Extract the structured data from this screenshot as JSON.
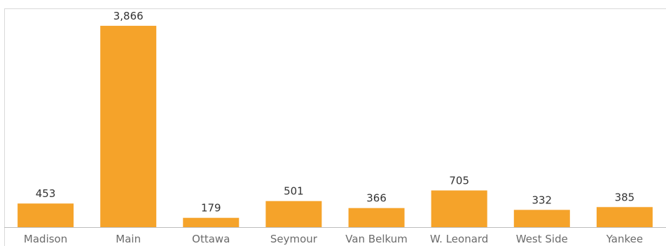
{
  "chart_data": {
    "type": "bar",
    "categories": [
      "Madison",
      "Main",
      "Ottawa",
      "Seymour",
      "Van Belkum",
      "W. Leonard",
      "West Side",
      "Yankee"
    ],
    "values": [
      453,
      3866,
      179,
      501,
      366,
      705,
      332,
      385
    ],
    "value_labels": [
      "453",
      "3,866",
      "179",
      "501",
      "366",
      "705",
      "332",
      "385"
    ],
    "title": "",
    "xlabel": "",
    "ylabel": "",
    "ylim": [
      0,
      4200
    ],
    "grid": false,
    "legend": "none",
    "bar_color": "#F5A32A",
    "frame_color": "#D9D9D9",
    "axis_color": "#BDBDBD"
  }
}
